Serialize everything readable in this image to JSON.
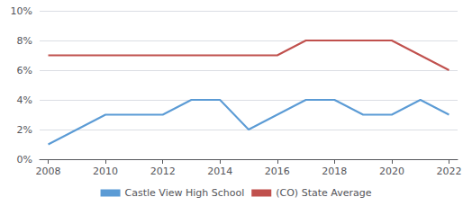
{
  "chart_data": {
    "type": "line",
    "x": [
      2008,
      2009,
      2010,
      2011,
      2012,
      2013,
      2014,
      2015,
      2016,
      2017,
      2018,
      2019,
      2020,
      2021,
      2022
    ],
    "series": [
      {
        "name": "Castle View High School",
        "color": "#5B9BD5",
        "values": [
          1,
          2,
          3,
          3,
          3,
          4,
          4,
          2,
          3,
          4,
          4,
          3,
          3,
          4,
          3
        ]
      },
      {
        "name": "(CO) State Average",
        "color": "#C0504D",
        "values": [
          7,
          7,
          7,
          7,
          7,
          7,
          7,
          7,
          7,
          8,
          8,
          8,
          8,
          7,
          6
        ]
      }
    ],
    "xlim": [
      2007.7,
      2022.3
    ],
    "xticks": [
      2008,
      2010,
      2012,
      2014,
      2016,
      2018,
      2020,
      2022
    ],
    "ylim": [
      0,
      10
    ],
    "yticks": [
      {
        "value": 0,
        "label": "0%"
      },
      {
        "value": 2,
        "label": "2%"
      },
      {
        "value": 4,
        "label": "4%"
      },
      {
        "value": 6,
        "label": "6%"
      },
      {
        "value": 8,
        "label": "8%"
      },
      {
        "value": 10,
        "label": "10%"
      }
    ],
    "grid": true,
    "legend": "bottom"
  }
}
